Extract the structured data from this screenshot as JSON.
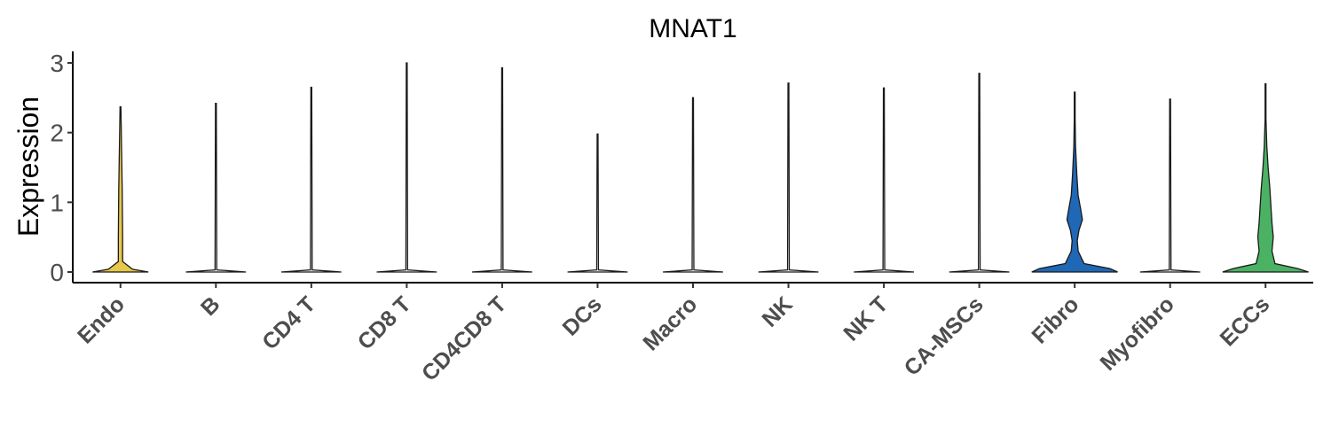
{
  "chart_data": {
    "type": "violin",
    "title": "MNAT1",
    "xlabel": "",
    "ylabel": "Expression",
    "ylim": [
      -0.15,
      3.15
    ],
    "yticks": [
      0,
      1,
      2,
      3
    ],
    "grid": false,
    "legend": "none",
    "categories": [
      "Endo",
      "B",
      "CD4 T",
      "CD8 T",
      "CD4CD8 T",
      "DCs",
      "Macro",
      "NK",
      "NK T",
      "CA-MSCs",
      "Fibro",
      "Myofibro",
      "ECCs"
    ],
    "max_values": [
      2.37,
      2.42,
      2.65,
      3.0,
      2.93,
      1.98,
      2.5,
      2.71,
      2.64,
      2.85,
      2.58,
      2.48,
      2.7
    ],
    "density_width": [
      [
        [
          0,
          0.65
        ],
        [
          0.04,
          0.28
        ],
        [
          0.15,
          0.05
        ],
        [
          0.5,
          0.05
        ],
        [
          1.2,
          0.04
        ],
        [
          2.37,
          0.01
        ]
      ],
      [
        [
          0,
          0.7
        ],
        [
          0.03,
          0.02
        ],
        [
          2.42,
          0.01
        ]
      ],
      [
        [
          0,
          0.7
        ],
        [
          0.03,
          0.02
        ],
        [
          2.65,
          0.01
        ]
      ],
      [
        [
          0,
          0.7
        ],
        [
          0.03,
          0.02
        ],
        [
          3.0,
          0.01
        ]
      ],
      [
        [
          0,
          0.7
        ],
        [
          0.03,
          0.02
        ],
        [
          2.93,
          0.01
        ]
      ],
      [
        [
          0,
          0.7
        ],
        [
          0.03,
          0.02
        ],
        [
          1.98,
          0.01
        ]
      ],
      [
        [
          0,
          0.7
        ],
        [
          0.03,
          0.02
        ],
        [
          2.5,
          0.01
        ]
      ],
      [
        [
          0,
          0.7
        ],
        [
          0.03,
          0.02
        ],
        [
          2.71,
          0.01
        ]
      ],
      [
        [
          0,
          0.7
        ],
        [
          0.03,
          0.02
        ],
        [
          2.64,
          0.01
        ]
      ],
      [
        [
          0,
          0.7
        ],
        [
          0.03,
          0.02
        ],
        [
          2.85,
          0.01
        ]
      ],
      [
        [
          0,
          1.0
        ],
        [
          0.05,
          0.82
        ],
        [
          0.12,
          0.22
        ],
        [
          0.3,
          0.08
        ],
        [
          0.45,
          0.06
        ],
        [
          0.6,
          0.1
        ],
        [
          0.75,
          0.18
        ],
        [
          0.9,
          0.14
        ],
        [
          1.1,
          0.08
        ],
        [
          1.4,
          0.05
        ],
        [
          1.8,
          0.02
        ],
        [
          2.2,
          0.01
        ],
        [
          2.58,
          0.01
        ]
      ],
      [
        [
          0,
          0.7
        ],
        [
          0.03,
          0.02
        ],
        [
          2.48,
          0.01
        ]
      ],
      [
        [
          0,
          1.0
        ],
        [
          0.05,
          0.75
        ],
        [
          0.12,
          0.22
        ],
        [
          0.3,
          0.15
        ],
        [
          0.5,
          0.18
        ],
        [
          0.7,
          0.15
        ],
        [
          0.9,
          0.13
        ],
        [
          1.2,
          0.1
        ],
        [
          1.5,
          0.06
        ],
        [
          1.8,
          0.03
        ],
        [
          2.2,
          0.01
        ],
        [
          2.7,
          0.01
        ]
      ]
    ],
    "colors": [
      "#e6c84a",
      "#ffffff",
      "#ffffff",
      "#ffffff",
      "#ffffff",
      "#ffffff",
      "#ffffff",
      "#ffffff",
      "#ffffff",
      "#ffffff",
      "#1f68b5",
      "#ffffff",
      "#4bb264"
    ]
  }
}
